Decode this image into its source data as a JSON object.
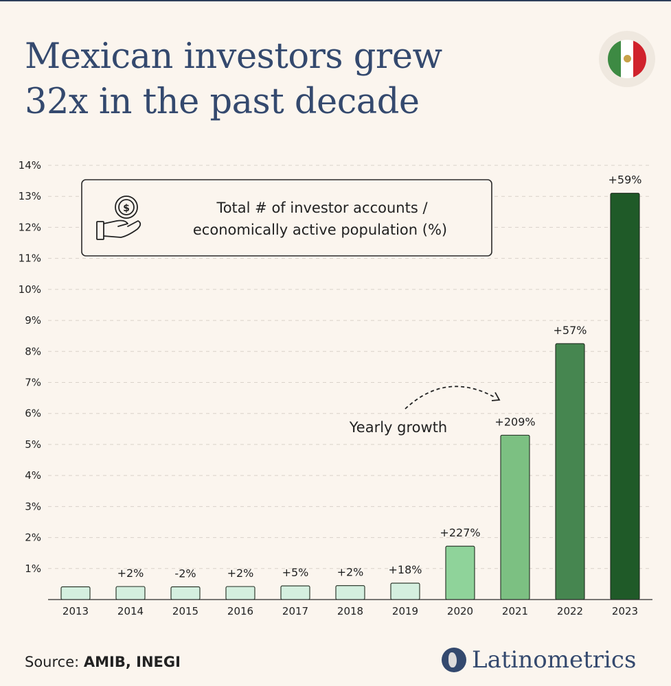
{
  "title": {
    "line1": "Mexican investors grew",
    "line2": "32x in the past decade"
  },
  "flag_icon": "mexico-flag-icon",
  "chart_data": {
    "type": "bar",
    "title": "Total # of investor accounts / economically active population (%)",
    "legend_line1": "Total # of investor accounts /",
    "legend_line2": "economically active population (%)",
    "legend_icon": "money-hand-icon",
    "categories": [
      "2013",
      "2014",
      "2015",
      "2016",
      "2017",
      "2018",
      "2019",
      "2020",
      "2021",
      "2022",
      "2023"
    ],
    "values": [
      0.41,
      0.42,
      0.41,
      0.42,
      0.44,
      0.45,
      0.53,
      1.72,
      5.3,
      8.25,
      13.1
    ],
    "growth_labels": [
      "",
      "+2%",
      "-2%",
      "+2%",
      "+5%",
      "+2%",
      "+18%",
      "+227%",
      "+209%",
      "+57%",
      "+59%"
    ],
    "bar_colors": [
      "#d4efdf",
      "#d4efdf",
      "#d4efdf",
      "#d4efdf",
      "#d4efdf",
      "#d4efdf",
      "#d4efdf",
      "#8fd39a",
      "#7cc082",
      "#468650",
      "#1f5a28"
    ],
    "y_ticks": [
      "1%",
      "2%",
      "3%",
      "4%",
      "5%",
      "6%",
      "7%",
      "8%",
      "9%",
      "10%",
      "11%",
      "12%",
      "13%",
      "14%"
    ],
    "ylim": [
      0,
      14
    ],
    "annotation": "Yearly growth",
    "grid": true
  },
  "source": {
    "label": "Source:",
    "value": "AMIB, INEGI"
  },
  "brand": {
    "name": "Latinometrics"
  }
}
